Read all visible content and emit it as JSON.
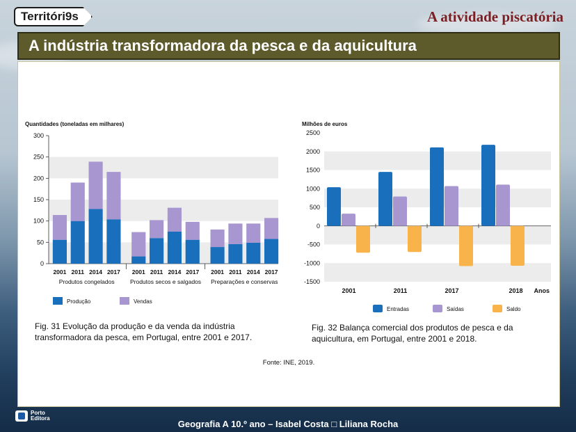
{
  "header": {
    "logo_text": "Territóri9s",
    "section_title": "A atividade piscatória",
    "banner_title": "A indústria transformadora da pesca e da aquicultura"
  },
  "chart_data": [
    {
      "type": "bar",
      "stacked": true,
      "title": "",
      "ylabel": "Quantidades (toneladas em milhares)",
      "ylim": [
        0,
        300
      ],
      "yticks": [
        0,
        50,
        100,
        150,
        200,
        250,
        300
      ],
      "groups": [
        "Produtos congelados",
        "Produtos secos e salgados",
        "Preparações e conservas"
      ],
      "categories": [
        "2001",
        "2011",
        "2014",
        "2017",
        "2001",
        "2011",
        "2014",
        "2017",
        "2001",
        "2011",
        "2014",
        "2017"
      ],
      "series": [
        {
          "name": "Produção",
          "color": "#1a6fbd",
          "values": [
            56,
            100,
            128,
            104,
            17,
            60,
            75,
            56,
            39,
            46,
            49,
            58
          ]
        },
        {
          "name": "Vendas",
          "color": "#a796cf",
          "values": [
            58,
            90,
            111,
            111,
            57,
            42,
            56,
            42,
            41,
            48,
            45,
            49
          ]
        }
      ],
      "grid": "bands",
      "legend_position": "bottom-left",
      "caption": "Fig. 31 Evolução da produção e da venda da indústria transformadora da pesca, em Portugal, entre 2001 e 2017."
    },
    {
      "type": "bar",
      "title": "",
      "ylabel": "Milhões de euros",
      "xlabel": "Anos",
      "ylim": [
        -1500,
        2500
      ],
      "yticks": [
        -1500,
        -1000,
        -500,
        0,
        500,
        1000,
        1500,
        2000,
        2500
      ],
      "categories": [
        "2001",
        "2011",
        "2017",
        "2018"
      ],
      "series": [
        {
          "name": "Entradas",
          "color": "#1a6fbd",
          "values": [
            1040,
            1450,
            2110,
            2180
          ]
        },
        {
          "name": "Saídas",
          "color": "#a796cf",
          "values": [
            330,
            790,
            1070,
            1110
          ]
        },
        {
          "name": "Saldo",
          "color": "#f8b34b",
          "values": [
            -720,
            -700,
            -1080,
            -1070
          ]
        }
      ],
      "grid": "bands",
      "legend_position": "bottom",
      "caption": "Fig. 32 Balança comercial dos produtos de pesca e da aquicultura, em Portugal, entre 2001 e 2018."
    }
  ],
  "source": "Fonte: INE, 2019.",
  "footer": {
    "publisher": "Porto Editora",
    "credits": "Geografia A 10.º ano – Isabel Costa □ Liliana Rocha"
  }
}
